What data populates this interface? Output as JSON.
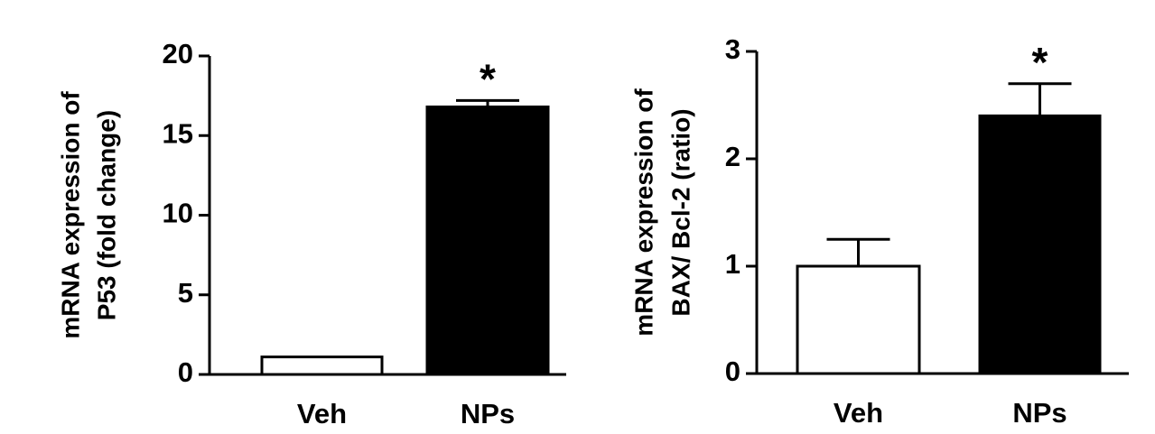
{
  "chart_data": [
    {
      "type": "bar",
      "y_label": [
        "mRNA expression of",
        "P53 (fold change)"
      ],
      "categories": [
        "Veh",
        "NPs"
      ],
      "values": [
        1.1,
        16.8
      ],
      "errors": [
        null,
        0.4
      ],
      "colors": [
        "#ffffff",
        "#000000"
      ],
      "significance": [
        null,
        "*"
      ],
      "ylim": [
        0,
        20
      ],
      "yticks": [
        0,
        5,
        10,
        15,
        20
      ]
    },
    {
      "type": "bar",
      "y_label": [
        "mRNA expression of",
        "BAX/ Bcl-2 (ratio)"
      ],
      "categories": [
        "Veh",
        "NPs"
      ],
      "values": [
        1.0,
        2.4
      ],
      "errors": [
        0.25,
        0.3
      ],
      "colors": [
        "#ffffff",
        "#000000"
      ],
      "significance": [
        null,
        "*"
      ],
      "ylim": [
        0,
        3
      ],
      "yticks": [
        0,
        1,
        2,
        3
      ]
    }
  ]
}
